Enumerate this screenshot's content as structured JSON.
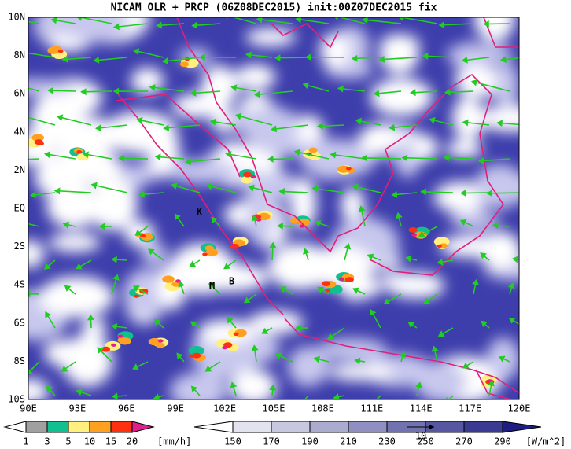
{
  "title": "NICAM OLR + PRCP (06Z08DEC2015) init:00Z07DEC2015 fix",
  "lon_labels": [
    "90E",
    "93E",
    "96E",
    "99E",
    "102E",
    "105E",
    "108E",
    "111E",
    "114E",
    "117E",
    "120E"
  ],
  "lat_labels": [
    "10N",
    "8N",
    "6N",
    "4N",
    "2N",
    "EQ",
    "2S",
    "4S",
    "6S",
    "8S",
    "10S"
  ],
  "place_labels": [
    "K",
    "M",
    "B"
  ],
  "precip_colorbar": {
    "labels": [
      1,
      3,
      5,
      10,
      15,
      20
    ],
    "unit": "[mm/h]"
  },
  "olr_colorbar": {
    "labels": [
      150,
      170,
      190,
      210,
      230,
      250,
      270,
      290
    ],
    "unit": "[W/m^2]"
  },
  "vector_reference": "10"
}
